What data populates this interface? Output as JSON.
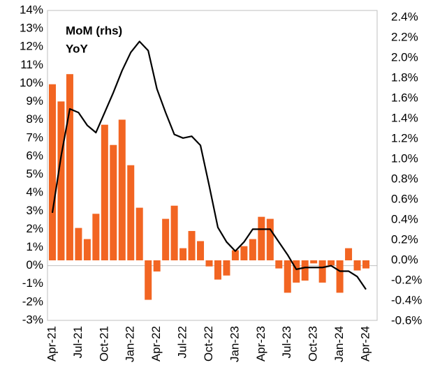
{
  "chart_data": {
    "type": "bar-line",
    "categories": [
      "Apr-21",
      null,
      null,
      "Jul-21",
      null,
      null,
      "Oct-21",
      null,
      null,
      "Jan-22",
      null,
      null,
      "Apr-22",
      null,
      null,
      "Jul-22",
      null,
      null,
      "Oct-22",
      null,
      null,
      "Jan-23",
      null,
      null,
      "Apr-23",
      null,
      null,
      "Jul-23",
      null,
      null,
      "Oct-23",
      null,
      null,
      "Jan-24",
      null,
      null,
      "Apr-24"
    ],
    "series": [
      {
        "name": "MoM (rhs)",
        "type": "bar",
        "axis": "y2",
        "color": "#f26522",
        "values": [
          1.74,
          1.57,
          1.84,
          0.32,
          0.21,
          0.46,
          1.34,
          1.14,
          1.39,
          0.94,
          0.52,
          -0.39,
          -0.11,
          0.41,
          0.54,
          0.12,
          0.29,
          0.19,
          -0.06,
          -0.19,
          -0.15,
          0.1,
          0.14,
          0.21,
          0.43,
          0.41,
          -0.08,
          -0.32,
          -0.22,
          -0.2,
          -0.03,
          -0.22,
          -0.05,
          -0.32,
          0.12,
          -0.1,
          -0.08
        ]
      },
      {
        "name": "YoY",
        "type": "line",
        "axis": "y",
        "color": "#000000",
        "values": [
          2.9,
          6.0,
          8.6,
          8.4,
          7.7,
          7.3,
          8.4,
          9.5,
          10.7,
          11.7,
          12.3,
          11.8,
          9.7,
          8.4,
          7.2,
          7.0,
          7.1,
          6.6,
          4.4,
          2.1,
          1.3,
          0.8,
          1.3,
          2.0,
          2.0,
          2.0,
          1.3,
          0.6,
          -0.2,
          -0.1,
          -0.1,
          -0.1,
          0.0,
          -0.3,
          -0.3,
          -0.6,
          -1.3
        ]
      }
    ],
    "ylim": [
      -3,
      14
    ],
    "yticks": [
      {
        "value": -3,
        "label": "-3%"
      },
      {
        "value": -2,
        "label": "-2%"
      },
      {
        "value": -1,
        "label": "-1%"
      },
      {
        "value": 0,
        "label": "0%"
      },
      {
        "value": 1,
        "label": "1%"
      },
      {
        "value": 2,
        "label": "2%"
      },
      {
        "value": 3,
        "label": "3%"
      },
      {
        "value": 4,
        "label": "4%"
      },
      {
        "value": 5,
        "label": "5%"
      },
      {
        "value": 6,
        "label": "6%"
      },
      {
        "value": 7,
        "label": "7%"
      },
      {
        "value": 8,
        "label": "8%"
      },
      {
        "value": 9,
        "label": "9%"
      },
      {
        "value": 10,
        "label": "10%"
      },
      {
        "value": 11,
        "label": "11%"
      },
      {
        "value": 12,
        "label": "12%"
      },
      {
        "value": 13,
        "label": "13%"
      },
      {
        "value": 14,
        "label": "14%"
      }
    ],
    "y2lim": [
      -0.6,
      2.4
    ],
    "y2ticks": [
      {
        "value": -0.6,
        "label": "-0.6%"
      },
      {
        "value": -0.4,
        "label": "-0.4%"
      },
      {
        "value": -0.2,
        "label": "-0.2%"
      },
      {
        "value": 0,
        "label": "0.0%"
      },
      {
        "value": 0.2,
        "label": "0.2%"
      },
      {
        "value": 0.4,
        "label": "0.4%"
      },
      {
        "value": 0.6,
        "label": "0.6%"
      },
      {
        "value": 0.8,
        "label": "0.8%"
      },
      {
        "value": 1.0,
        "label": "1.0%"
      },
      {
        "value": 1.2,
        "label": "1.2%"
      },
      {
        "value": 1.4,
        "label": "1.4%"
      },
      {
        "value": 1.6,
        "label": "1.6%"
      },
      {
        "value": 1.8,
        "label": "1.8%"
      },
      {
        "value": 2.0,
        "label": "2.0%"
      },
      {
        "value": 2.2,
        "label": "2.2%"
      },
      {
        "value": 2.4,
        "label": "2.4%"
      }
    ]
  }
}
